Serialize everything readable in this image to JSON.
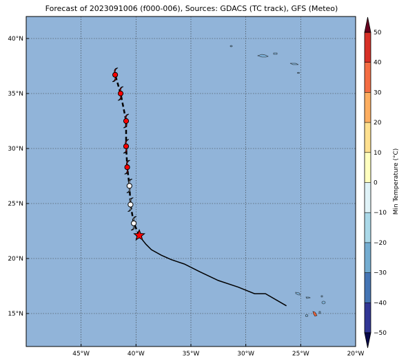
{
  "title": "Forecast of 2023091006 (f000-006), Sources: GDACS (TC track), GFS (Meteo)",
  "map": {
    "lon_range": [
      -50,
      -20
    ],
    "lat_range": [
      12,
      42
    ],
    "lon_ticks": [
      {
        "value": -45,
        "label": "45°W"
      },
      {
        "value": -40,
        "label": "40°W"
      },
      {
        "value": -35,
        "label": "35°W"
      },
      {
        "value": -30,
        "label": "30°W"
      },
      {
        "value": -25,
        "label": "25°W"
      },
      {
        "value": -20,
        "label": "20°W"
      }
    ],
    "lat_ticks": [
      {
        "value": 40,
        "label": "40°N"
      },
      {
        "value": 35,
        "label": "35°N"
      },
      {
        "value": 30,
        "label": "30°N"
      },
      {
        "value": 25,
        "label": "25°N"
      },
      {
        "value": 20,
        "label": "20°N"
      },
      {
        "value": 15,
        "label": "15°N"
      }
    ],
    "ocean_color": "#91b4d9",
    "grid": true
  },
  "track": {
    "past": [
      [
        -26.3,
        15.7
      ],
      [
        -28.2,
        16.8
      ],
      [
        -29.2,
        16.8
      ],
      [
        -30.7,
        17.4
      ],
      [
        -32.5,
        18.0
      ],
      [
        -34.2,
        18.8
      ],
      [
        -35.6,
        19.5
      ],
      [
        -36.8,
        19.9
      ],
      [
        -37.7,
        20.3
      ],
      [
        -38.6,
        20.8
      ],
      [
        -39.1,
        21.3
      ],
      [
        -39.5,
        21.8
      ],
      [
        -39.7,
        22.1
      ]
    ],
    "current": [
      -39.7,
      22.1
    ],
    "forecast": [
      [
        -40.2,
        23.2
      ],
      [
        -40.5,
        24.9
      ],
      [
        -40.6,
        26.6
      ],
      [
        -40.8,
        28.3
      ],
      [
        -40.9,
        30.2
      ],
      [
        -40.9,
        32.5
      ],
      [
        -41.4,
        35.0
      ],
      [
        -41.9,
        36.7
      ]
    ],
    "forecast_colors": [
      "white",
      "white",
      "white",
      "red",
      "red",
      "red",
      "red",
      "red"
    ]
  },
  "colorbar": {
    "label": "Min Temperature (°C)",
    "ticks": [
      -50,
      -40,
      -30,
      -20,
      -10,
      0,
      10,
      20,
      30,
      40,
      50
    ],
    "colors": [
      "#313695",
      "#4575b4",
      "#74add1",
      "#abd9e9",
      "#e0f3f8",
      "#ffffbf",
      "#fee090",
      "#fdae61",
      "#f46d43",
      "#d73027",
      "#a50026"
    ],
    "under_color": "#08084a",
    "over_color": "#67001f"
  }
}
